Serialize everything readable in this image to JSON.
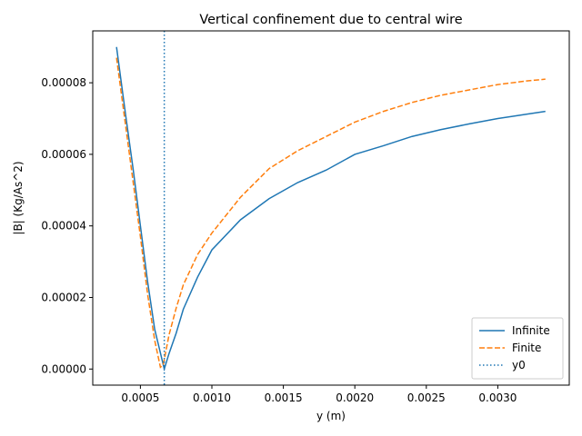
{
  "chart_data": {
    "type": "line",
    "title": "Vertical confinement due to central wire",
    "xlabel": "y (m)",
    "ylabel": "|B| (Kg/As^2)",
    "xlim": [
      0.0001667,
      0.0035
    ],
    "ylim": [
      -4.5e-06,
      9.45e-05
    ],
    "xticks": [
      {
        "value": 0.0005,
        "label": "0.0005"
      },
      {
        "value": 0.001,
        "label": "0.0010"
      },
      {
        "value": 0.0015,
        "label": "0.0015"
      },
      {
        "value": 0.002,
        "label": "0.0020"
      },
      {
        "value": 0.0025,
        "label": "0.0025"
      },
      {
        "value": 0.003,
        "label": "0.0030"
      }
    ],
    "yticks": [
      {
        "value": 0.0,
        "label": "0.00000"
      },
      {
        "value": 2e-05,
        "label": "0.00002"
      },
      {
        "value": 4e-05,
        "label": "0.00004"
      },
      {
        "value": 6e-05,
        "label": "0.00006"
      },
      {
        "value": 8e-05,
        "label": "0.00008"
      }
    ],
    "grid": false,
    "legend_position": "lower-right",
    "series": [
      {
        "name": "Infinite",
        "color": "#1f77b4",
        "style": "solid",
        "points": [
          [
            0.000333,
            9e-05
          ],
          [
            0.0004,
            7e-05
          ],
          [
            0.00045,
            5.56e-05
          ],
          [
            0.0005,
            4e-05
          ],
          [
            0.00055,
            2.45e-05
          ],
          [
            0.0006,
            1.11e-05
          ],
          [
            0.00064,
            4.5e-06
          ],
          [
            0.000667,
            0.0
          ],
          [
            0.0007,
            4.3e-06
          ],
          [
            0.00075,
            1e-05
          ],
          [
            0.0008,
            1.67e-05
          ],
          [
            0.0009,
            2.57e-05
          ],
          [
            0.001,
            3.33e-05
          ],
          [
            0.0012,
            4.17e-05
          ],
          [
            0.0014,
            4.76e-05
          ],
          [
            0.0016,
            5.21e-05
          ],
          [
            0.0018,
            5.56e-05
          ],
          [
            0.002,
            6e-05
          ],
          [
            0.0022,
            6.24e-05
          ],
          [
            0.0024,
            6.5e-05
          ],
          [
            0.0026,
            6.69e-05
          ],
          [
            0.0028,
            6.85e-05
          ],
          [
            0.003,
            7e-05
          ],
          [
            0.0032,
            7.12e-05
          ],
          [
            0.003333,
            7.2e-05
          ]
        ]
      },
      {
        "name": "Finite",
        "color": "#ff7f0e",
        "style": "dashed",
        "points": [
          [
            0.000333,
            8.7e-05
          ],
          [
            0.0004,
            6.7e-05
          ],
          [
            0.00045,
            5.2e-05
          ],
          [
            0.0005,
            3.7e-05
          ],
          [
            0.00055,
            2.1e-05
          ],
          [
            0.0006,
            8e-06
          ],
          [
            0.00064,
            5e-07
          ],
          [
            0.00066,
            1.2e-06
          ],
          [
            0.0007,
            9.5e-06
          ],
          [
            0.00075,
            1.7e-05
          ],
          [
            0.0008,
            2.35e-05
          ],
          [
            0.0009,
            3.2e-05
          ],
          [
            0.001,
            3.8e-05
          ],
          [
            0.0012,
            4.8e-05
          ],
          [
            0.0014,
            5.6e-05
          ],
          [
            0.0016,
            6.1e-05
          ],
          [
            0.0018,
            6.5e-05
          ],
          [
            0.002,
            6.9e-05
          ],
          [
            0.0022,
            7.2e-05
          ],
          [
            0.0024,
            7.45e-05
          ],
          [
            0.0026,
            7.65e-05
          ],
          [
            0.0028,
            7.8e-05
          ],
          [
            0.003,
            7.95e-05
          ],
          [
            0.0032,
            8.05e-05
          ],
          [
            0.003333,
            8.1e-05
          ]
        ]
      }
    ],
    "vlines": [
      {
        "name": "y0",
        "x": 0.000667,
        "color": "#1f77b4",
        "style": "dotted"
      }
    ]
  }
}
